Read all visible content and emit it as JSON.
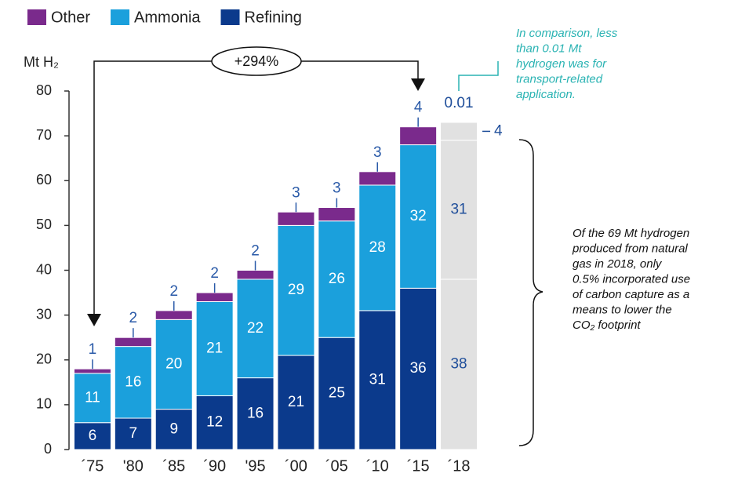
{
  "chart_data": {
    "type": "stacked_bar",
    "y_label": "Mt H₂",
    "categories": [
      "´75",
      "'80",
      "´85",
      "´90",
      "'95",
      "´00",
      "´05",
      "´10",
      "´15",
      "´18"
    ],
    "series": [
      {
        "name": "Refining",
        "color": "#0b3a8c",
        "colors": [
          "#0b3a8c",
          "#0b3a8c",
          "#0b3a8c",
          "#0b3a8c",
          "#0b3a8c",
          "#0b3a8c",
          "#0b3a8c",
          "#0b3a8c",
          "#0b3a8c",
          "#e1e1e1"
        ],
        "values": [
          6,
          7,
          9,
          12,
          16,
          21,
          25,
          31,
          36,
          38
        ]
      },
      {
        "name": "Ammonia",
        "color": "#1ba0dc",
        "colors": [
          "#1ba0dc",
          "#1ba0dc",
          "#1ba0dc",
          "#1ba0dc",
          "#1ba0dc",
          "#1ba0dc",
          "#1ba0dc",
          "#1ba0dc",
          "#1ba0dc",
          "#e1e1e1"
        ],
        "values": [
          11,
          16,
          20,
          21,
          22,
          29,
          26,
          28,
          32,
          31
        ]
      },
      {
        "name": "Other",
        "color": "#7a2a8c",
        "colors": [
          "#7a2a8c",
          "#7a2a8c",
          "#7a2a8c",
          "#7a2a8c",
          "#7a2a8c",
          "#7a2a8c",
          "#7a2a8c",
          "#7a2a8c",
          "#7a2a8c",
          "#e1e1e1"
        ],
        "values": [
          1,
          2,
          2,
          2,
          2,
          3,
          3,
          3,
          4,
          4
        ]
      }
    ],
    "transport_value": 0.01,
    "ylim": [
      0,
      80
    ],
    "yticks": [
      0,
      10,
      20,
      30,
      40,
      50,
      60,
      70,
      80
    ],
    "growth_label": "+294%",
    "transport_note": [
      "In comparison, less",
      "than 0.01 Mt",
      "hydrogen was for",
      "transport-related",
      "application."
    ],
    "gas_note": [
      "Of the 69 Mt hydrogen",
      "produced from natural",
      "gas in  2018, only",
      "0.5% incorporated use",
      "of carbon capture as a",
      "means to lower the",
      "CO₂ footprint"
    ]
  }
}
